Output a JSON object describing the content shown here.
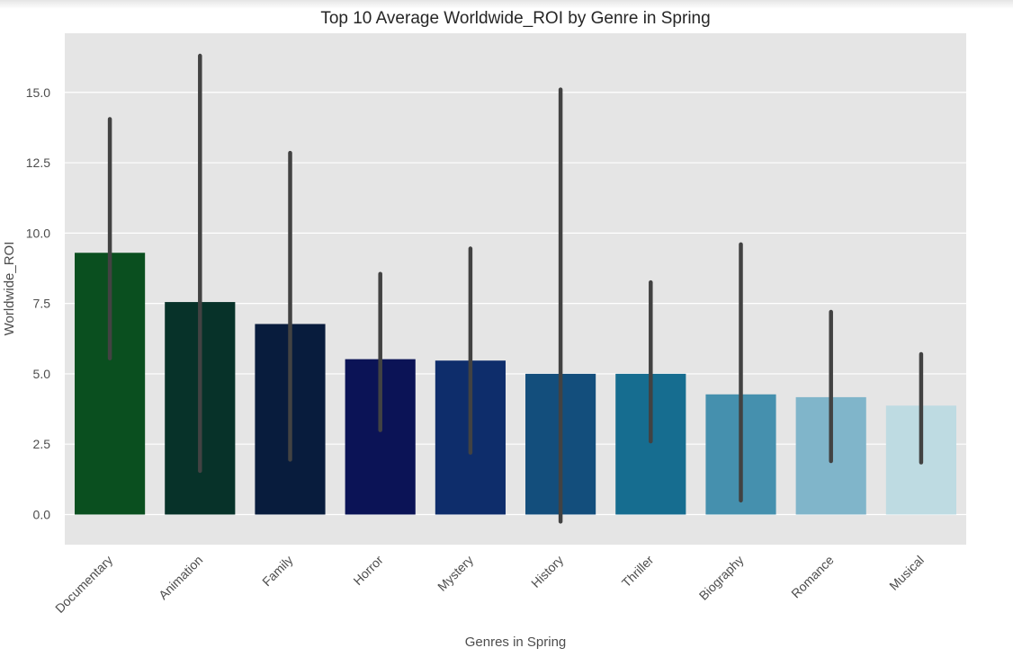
{
  "chart_data": {
    "type": "bar",
    "title": "Top 10 Average Worldwide_ROI by Genre in Spring",
    "xlabel": "Genres in Spring",
    "ylabel": "Worldwide_ROI",
    "categories": [
      "Documentary",
      "Animation",
      "Family",
      "Horror",
      "Mystery",
      "History",
      "Thriller",
      "Biography",
      "Romance",
      "Musical"
    ],
    "values": [
      9.3,
      7.55,
      6.77,
      5.52,
      5.47,
      5.0,
      5.0,
      4.27,
      4.17,
      3.87
    ],
    "error_low": [
      5.55,
      1.55,
      1.95,
      3.0,
      2.2,
      -0.25,
      2.6,
      0.5,
      1.9,
      1.85
    ],
    "error_high": [
      14.05,
      16.3,
      12.85,
      8.55,
      9.45,
      15.1,
      8.25,
      9.6,
      7.2,
      5.7
    ],
    "colors": [
      "#0a4f1f",
      "#073229",
      "#081c3d",
      "#0b1356",
      "#0e2d6b",
      "#134e7c",
      "#166d90",
      "#4590ae",
      "#80b5ca",
      "#bedbe2"
    ],
    "error_color": "#424242",
    "yticks": [
      0.0,
      2.5,
      5.0,
      7.5,
      10.0,
      12.5,
      15.0
    ],
    "ylim": [
      -1.07,
      17.1
    ],
    "grid": true,
    "background": "#e5e5e5",
    "grid_color": "#ffffff"
  }
}
